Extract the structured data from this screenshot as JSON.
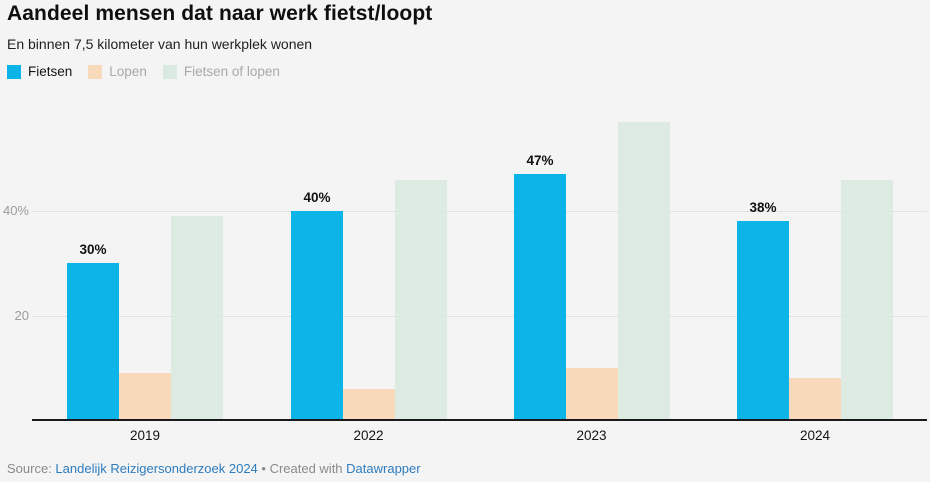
{
  "header": {
    "title": "Aandeel mensen dat naar werk fietst/loopt",
    "subtitle": "En binnen 7,5 kilometer van hun werkplek wonen"
  },
  "legend": {
    "items": [
      {
        "label": "Fietsen",
        "color": "#0db4e8",
        "text_color": "#141414"
      },
      {
        "label": "Lopen",
        "color": "#f8d9ba",
        "text_color": "#a9a9a9"
      },
      {
        "label": "Fietsen of lopen",
        "color": "#dbeae0",
        "text_color": "#a9a9a9"
      }
    ]
  },
  "chart_data": {
    "type": "bar",
    "title": "Aandeel mensen dat naar werk fietst/loopt",
    "subtitle": "En binnen 7,5 kilometer van hun werkplek wonen",
    "categories": [
      "2019",
      "2022",
      "2023",
      "2024"
    ],
    "series": [
      {
        "name": "Fietsen",
        "color": "#0db4e8",
        "values": [
          30,
          40,
          47,
          38
        ],
        "value_labels": [
          "30%",
          "40%",
          "47%",
          "38%"
        ]
      },
      {
        "name": "Lopen",
        "color": "#f8d9ba",
        "values": [
          9,
          6,
          10,
          8
        ],
        "value_labels": null
      },
      {
        "name": "Fietsen of lopen",
        "color": "#dbeae0",
        "values": [
          39,
          46,
          57,
          46
        ],
        "value_labels": null
      }
    ],
    "xlabel": "",
    "ylabel": "",
    "ylim": [
      0,
      60
    ],
    "yticks": [
      {
        "value": 20,
        "label": "20"
      },
      {
        "value": 40,
        "label": "40%"
      }
    ],
    "grid": true,
    "legend_position": "top"
  },
  "footer": {
    "source_prefix": "Source: ",
    "source_link": "Landelijk Reizigersonderzoek 2024",
    "separator": " • ",
    "created_with": "Created with ",
    "tool_link": "Datawrapper"
  },
  "colors": {
    "background": "#f4f4f4",
    "accent_cyan": "#0db4e8",
    "accent_peach": "#f8d9ba",
    "accent_green": "#dbeae0",
    "link_blue": "#2e7cbd",
    "gridline": "#e1e1e1",
    "axis": "#19191b"
  }
}
